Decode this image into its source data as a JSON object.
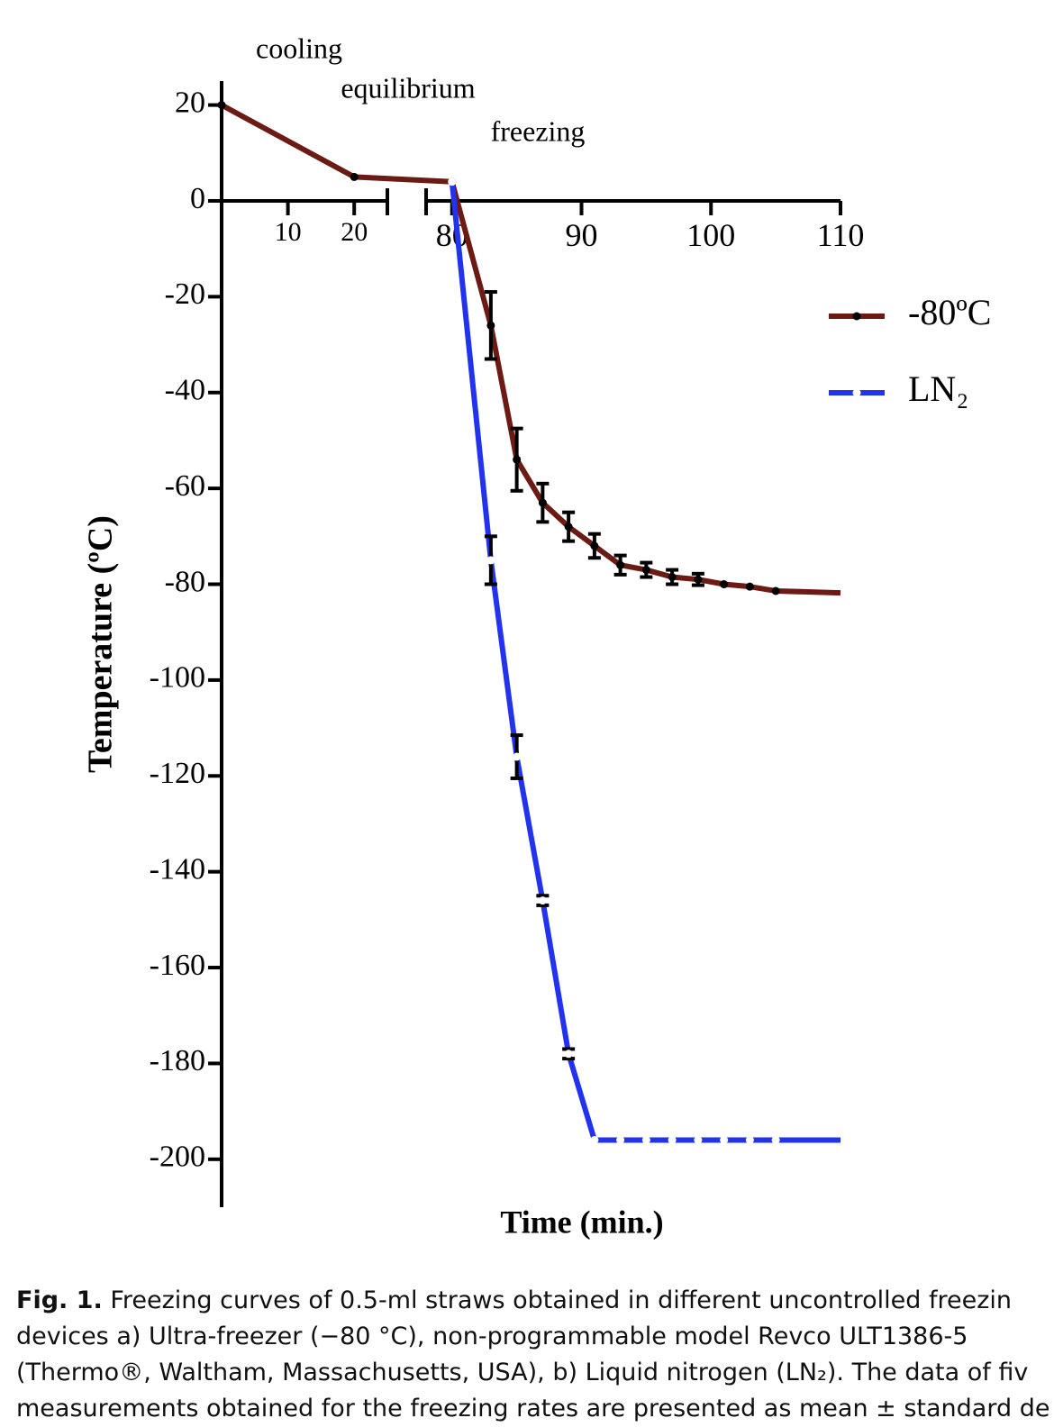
{
  "chart_data": {
    "type": "line",
    "y_label": "Temperature (ºC)",
    "x_label": "Time (min.)",
    "annotations": [
      "cooling",
      "equilibrium",
      "freezing"
    ],
    "xlim": [
      0,
      110
    ],
    "x_break": [
      25,
      78
    ],
    "xticks": [
      10,
      20,
      80,
      90,
      100,
      110
    ],
    "ylim": [
      -210,
      25
    ],
    "yticks": [
      20,
      0,
      -20,
      -40,
      -60,
      -80,
      -100,
      -120,
      -140,
      -160,
      -180,
      -200
    ],
    "legend": "right",
    "series": [
      {
        "name": "-80ºC",
        "color": "#6b1a14",
        "marker_color": "#000000",
        "x": [
          0,
          20,
          80,
          83,
          85,
          87,
          89,
          91,
          93,
          95,
          97,
          99,
          101,
          103,
          105,
          110
        ],
        "values": [
          20,
          5,
          4,
          -26,
          -54,
          -63,
          -68,
          -72,
          -76,
          -77,
          -78.5,
          -79,
          -80,
          -80.5,
          -81.4,
          -81.8
        ],
        "errors": [
          null,
          null,
          null,
          7,
          6.5,
          4,
          3,
          2.5,
          2,
          1.5,
          1.5,
          1.2,
          null,
          null,
          null,
          null
        ]
      },
      {
        "name": "LN₂",
        "color": "#2233ee",
        "marker_color": "#ffffff",
        "x": [
          80,
          83,
          85,
          87,
          89,
          91,
          93,
          95,
          97,
          99,
          101,
          103,
          105,
          110
        ],
        "values": [
          4,
          -75,
          -116,
          -146,
          -178,
          -196,
          -196,
          -196,
          -196,
          -196,
          -196,
          -196,
          -196,
          -196
        ],
        "errors": [
          null,
          5,
          4.5,
          1,
          1,
          null,
          null,
          null,
          null,
          null,
          null,
          null,
          null,
          null
        ]
      }
    ]
  },
  "caption": {
    "label": "Fig. 1.",
    "lines": [
      "Freezing curves of 0.5-ml straws obtained in different uncontrolled freezin",
      "devices a) Ultra-freezer (−80 °C), non-programmable model Revco ULT1386-5",
      "(Thermo®, Waltham, Massachusetts, USA), b) Liquid nitrogen (LN₂). The data of fiv",
      "measurements obtained for the freezing rates are presented as mean ± standard de"
    ]
  }
}
